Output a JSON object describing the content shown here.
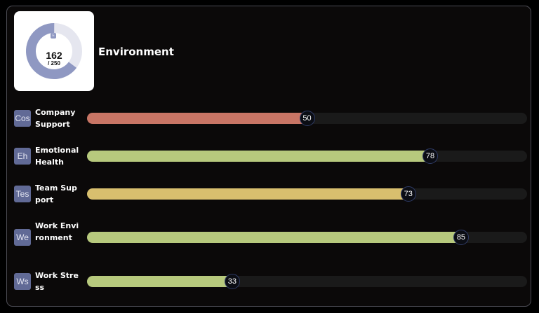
{
  "score": {
    "badge": "E",
    "value": "162",
    "total": "/ 250",
    "fraction": 0.648,
    "fill_color": "#8f98c2",
    "track_color": "#e5e6ef"
  },
  "title": "Environment",
  "metrics": [
    {
      "icon_text": "Cos",
      "label": "Company Support",
      "value": 50,
      "color": "#c87565"
    },
    {
      "icon_text": "Eh",
      "label": "Emotional Health",
      "value": 78,
      "color": "#b7c97d"
    },
    {
      "icon_text": "Tes",
      "label": "Team Support",
      "value": 73,
      "color": "#d8bf6e"
    },
    {
      "icon_text": "We",
      "label": "Work Environment",
      "value": 85,
      "color": "#b7c97d"
    },
    {
      "icon_text": "Ws",
      "label": "Work Stress",
      "value": 33,
      "color": "#b7c97d"
    }
  ]
}
